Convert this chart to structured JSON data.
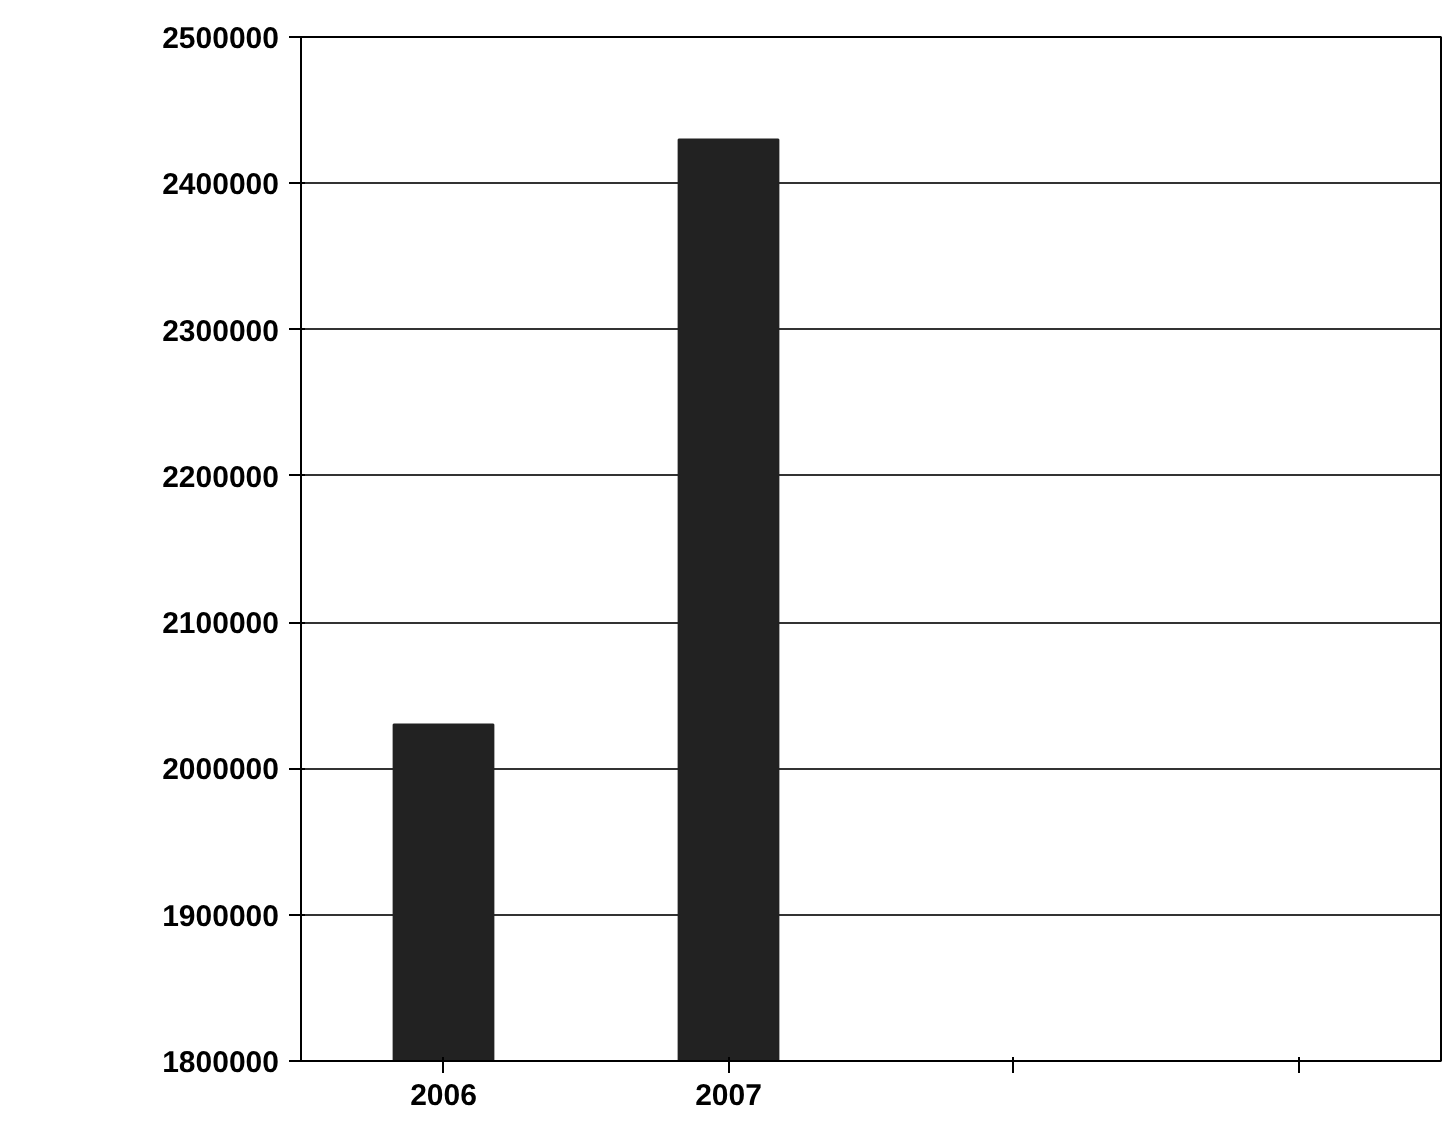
{
  "chart_data": {
    "type": "bar",
    "categories": [
      "2006",
      "2007",
      null,
      null
    ],
    "values": [
      2030000,
      2430000,
      null,
      null
    ],
    "color": "#222222",
    "ylim": [
      1800000,
      2500000
    ],
    "yticks": [
      1800000,
      1900000,
      2000000,
      2100000,
      2200000,
      2300000,
      2400000,
      2500000
    ],
    "grid": "y"
  }
}
